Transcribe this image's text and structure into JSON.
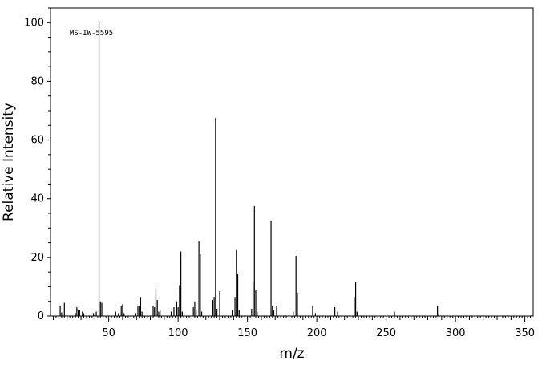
{
  "chart_data": {
    "type": "bar",
    "title": "",
    "annotation": "MS-IW-5595",
    "xlabel": "m/z",
    "ylabel": "Relative Intensity",
    "xlim": [
      8,
      356
    ],
    "ylim": [
      0,
      105
    ],
    "grid": false,
    "x_ticks": [
      50,
      100,
      150,
      200,
      250,
      300,
      350
    ],
    "y_ticks": [
      0,
      20,
      40,
      60,
      80,
      100
    ],
    "peaks": [
      {
        "mz": 15,
        "intensity": 3.5
      },
      {
        "mz": 16,
        "intensity": 1.2
      },
      {
        "mz": 18,
        "intensity": 4.5
      },
      {
        "mz": 26,
        "intensity": 1.0
      },
      {
        "mz": 27,
        "intensity": 3.0
      },
      {
        "mz": 28,
        "intensity": 2.0
      },
      {
        "mz": 29,
        "intensity": 2.0
      },
      {
        "mz": 31,
        "intensity": 1.5
      },
      {
        "mz": 32,
        "intensity": 1.0
      },
      {
        "mz": 39,
        "intensity": 1.0
      },
      {
        "mz": 41,
        "intensity": 1.5
      },
      {
        "mz": 43,
        "intensity": 100
      },
      {
        "mz": 44,
        "intensity": 5.0
      },
      {
        "mz": 45,
        "intensity": 4.5
      },
      {
        "mz": 55,
        "intensity": 1.5
      },
      {
        "mz": 57,
        "intensity": 1.0
      },
      {
        "mz": 59,
        "intensity": 3.5
      },
      {
        "mz": 60,
        "intensity": 4.0
      },
      {
        "mz": 61,
        "intensity": 1.0
      },
      {
        "mz": 69,
        "intensity": 1.0
      },
      {
        "mz": 71,
        "intensity": 3.5
      },
      {
        "mz": 72,
        "intensity": 3.5
      },
      {
        "mz": 73,
        "intensity": 6.5
      },
      {
        "mz": 74,
        "intensity": 1.5
      },
      {
        "mz": 82,
        "intensity": 3.5
      },
      {
        "mz": 83,
        "intensity": 3.0
      },
      {
        "mz": 84,
        "intensity": 9.5
      },
      {
        "mz": 85,
        "intensity": 5.5
      },
      {
        "mz": 86,
        "intensity": 1.5
      },
      {
        "mz": 87,
        "intensity": 2.0
      },
      {
        "mz": 95,
        "intensity": 1.5
      },
      {
        "mz": 97,
        "intensity": 3.0
      },
      {
        "mz": 99,
        "intensity": 5.0
      },
      {
        "mz": 100,
        "intensity": 3.0
      },
      {
        "mz": 101,
        "intensity": 10.5
      },
      {
        "mz": 102,
        "intensity": 22.0
      },
      {
        "mz": 103,
        "intensity": 1.5
      },
      {
        "mz": 111,
        "intensity": 3.0
      },
      {
        "mz": 112,
        "intensity": 5.0
      },
      {
        "mz": 113,
        "intensity": 2.0
      },
      {
        "mz": 115,
        "intensity": 25.5
      },
      {
        "mz": 116,
        "intensity": 21.0
      },
      {
        "mz": 117,
        "intensity": 1.5
      },
      {
        "mz": 125,
        "intensity": 5.5
      },
      {
        "mz": 126,
        "intensity": 6.5
      },
      {
        "mz": 127,
        "intensity": 67.5
      },
      {
        "mz": 128,
        "intensity": 2.5
      },
      {
        "mz": 130,
        "intensity": 8.5
      },
      {
        "mz": 139,
        "intensity": 2.0
      },
      {
        "mz": 141,
        "intensity": 6.5
      },
      {
        "mz": 142,
        "intensity": 22.5
      },
      {
        "mz": 143,
        "intensity": 14.5
      },
      {
        "mz": 144,
        "intensity": 2.0
      },
      {
        "mz": 153,
        "intensity": 2.5
      },
      {
        "mz": 154,
        "intensity": 11.5
      },
      {
        "mz": 155,
        "intensity": 37.5
      },
      {
        "mz": 156,
        "intensity": 9.0
      },
      {
        "mz": 157,
        "intensity": 1.5
      },
      {
        "mz": 167,
        "intensity": 32.5
      },
      {
        "mz": 168,
        "intensity": 3.5
      },
      {
        "mz": 169,
        "intensity": 2.0
      },
      {
        "mz": 171,
        "intensity": 3.5
      },
      {
        "mz": 183,
        "intensity": 1.5
      },
      {
        "mz": 185,
        "intensity": 20.5
      },
      {
        "mz": 186,
        "intensity": 8.0
      },
      {
        "mz": 197,
        "intensity": 3.5
      },
      {
        "mz": 199,
        "intensity": 1.0
      },
      {
        "mz": 213,
        "intensity": 3.0
      },
      {
        "mz": 215,
        "intensity": 1.5
      },
      {
        "mz": 227,
        "intensity": 6.5
      },
      {
        "mz": 228,
        "intensity": 11.5
      },
      {
        "mz": 229,
        "intensity": 1.5
      },
      {
        "mz": 256,
        "intensity": 1.5
      },
      {
        "mz": 287,
        "intensity": 3.5
      },
      {
        "mz": 288,
        "intensity": 1.0
      }
    ]
  }
}
